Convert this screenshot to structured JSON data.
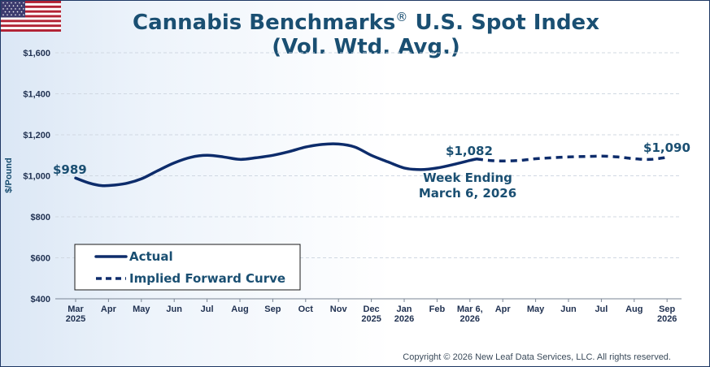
{
  "header": {
    "title_prefix": "Cannabis Benchmarks",
    "title_mark": "®",
    "title_suffix": "U.S. Spot Index",
    "subtitle": "(Vol. Wtd. Avg.)"
  },
  "footer": {
    "copyright": "Copyright © 2026 New Leaf Data Services, LLC. All rights reserved."
  },
  "colors": {
    "title": "#1a4f72",
    "line": "#0d2c6b",
    "grid": "#d0d8e2",
    "axis_text": "#1f3050"
  },
  "chart_data": {
    "type": "line",
    "ylabel": "$/Pound",
    "ylim": [
      400,
      1600
    ],
    "yticks": [
      400,
      600,
      800,
      1000,
      1200,
      1400,
      1600
    ],
    "ytick_labels": [
      "$400",
      "$600",
      "$800",
      "$1,000",
      "$1,200",
      "$1,400",
      "$1,600"
    ],
    "x_labels": [
      [
        "Mar",
        "2025"
      ],
      [
        "Apr"
      ],
      [
        "May"
      ],
      [
        "Jun"
      ],
      [
        "Jul"
      ],
      [
        "Aug"
      ],
      [
        "Sep"
      ],
      [
        "Oct"
      ],
      [
        "Nov"
      ],
      [
        "Dec",
        "2025"
      ],
      [
        "Jan",
        "2026"
      ],
      [
        "Feb"
      ],
      [
        "Mar 6,",
        "2026"
      ],
      [
        "Apr"
      ],
      [
        "May"
      ],
      [
        "Jun"
      ],
      [
        "Jul"
      ],
      [
        "Aug"
      ],
      [
        "Sep",
        "2026"
      ]
    ],
    "grid": "horizontal dashed",
    "legend_position": "bottom-left",
    "series": [
      {
        "name": "Actual",
        "style": "solid",
        "points": [
          [
            0,
            989
          ],
          [
            0.4,
            965
          ],
          [
            0.8,
            952
          ],
          [
            1.2,
            955
          ],
          [
            1.6,
            965
          ],
          [
            2.0,
            985
          ],
          [
            2.5,
            1025
          ],
          [
            3.0,
            1063
          ],
          [
            3.5,
            1090
          ],
          [
            4.0,
            1100
          ],
          [
            4.5,
            1092
          ],
          [
            5.0,
            1080
          ],
          [
            5.5,
            1088
          ],
          [
            6.0,
            1100
          ],
          [
            6.5,
            1118
          ],
          [
            7.0,
            1140
          ],
          [
            7.5,
            1153
          ],
          [
            8.0,
            1155
          ],
          [
            8.5,
            1140
          ],
          [
            9.0,
            1100
          ],
          [
            9.5,
            1068
          ],
          [
            10.0,
            1038
          ],
          [
            10.5,
            1030
          ],
          [
            11.0,
            1038
          ],
          [
            11.5,
            1055
          ],
          [
            12.0,
            1075
          ],
          [
            12.2,
            1082
          ]
        ]
      },
      {
        "name": "Implied Forward Curve",
        "style": "dashed",
        "points": [
          [
            12.2,
            1082
          ],
          [
            12.6,
            1075
          ],
          [
            13.0,
            1072
          ],
          [
            13.5,
            1075
          ],
          [
            14.0,
            1083
          ],
          [
            14.5,
            1088
          ],
          [
            15.0,
            1092
          ],
          [
            15.5,
            1094
          ],
          [
            16.0,
            1096
          ],
          [
            16.5,
            1092
          ],
          [
            17.0,
            1083
          ],
          [
            17.5,
            1080
          ],
          [
            18.0,
            1090
          ]
        ]
      }
    ],
    "annotations": [
      {
        "text": "$989",
        "x": 0,
        "y": 989
      },
      {
        "text": "$1,082",
        "x": 12.2,
        "y": 1082
      },
      {
        "text": "Week Ending",
        "x": 12.2,
        "y": 1082
      },
      {
        "text": "March 6, 2026",
        "x": 12.2,
        "y": 1082
      },
      {
        "text": "$1,090",
        "x": 18,
        "y": 1090
      }
    ]
  }
}
